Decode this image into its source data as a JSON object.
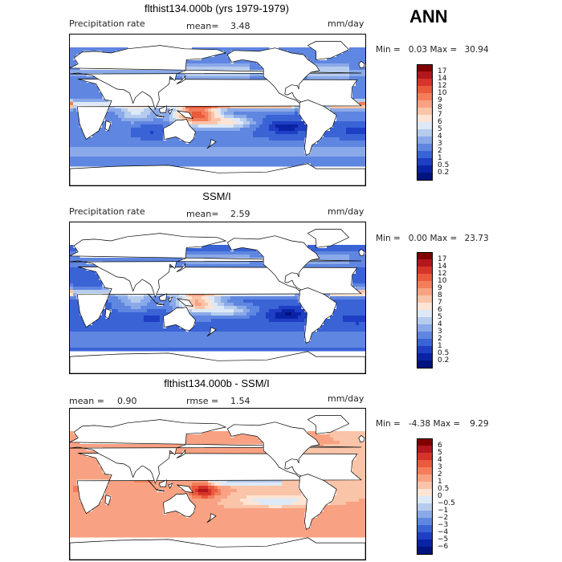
{
  "season": "ANN",
  "units": "mm/day",
  "panels": [
    {
      "title": "flthist134.000b (yrs 1979-1979)",
      "left_label": "Precipitation rate",
      "stat_label": "mean=",
      "stat_value": "3.48",
      "min_label": "Min =",
      "min_value": "0.03",
      "max_label": "Max =",
      "max_value": "30.94",
      "kind": "abs"
    },
    {
      "title": "SSM/I",
      "left_label": "Precipitation rate",
      "stat_label": "mean=",
      "stat_value": "2.59",
      "min_label": "Min =",
      "min_value": "0.00",
      "max_label": "Max =",
      "max_value": "23.73",
      "kind": "abs"
    },
    {
      "title": "flthist134.000b - SSM/I",
      "left_label": "mean =",
      "left_value": "0.90",
      "stat_label": "rmse =",
      "stat_value": "1.54",
      "min_label": "Min =",
      "min_value": "-4.38",
      "max_label": "Max =",
      "max_value": "9.29",
      "kind": "diff"
    }
  ],
  "chart_data": [
    {
      "type": "heatmap",
      "title": "flthist134.000b (yrs 1979-1979)",
      "variable": "Precipitation rate",
      "units": "mm/day",
      "mean": 3.48,
      "min": 0.03,
      "max": 30.94,
      "contour_levels": [
        0.2,
        0.5,
        1,
        2,
        3,
        4,
        5,
        6,
        7,
        8,
        9,
        10,
        12,
        14,
        17
      ],
      "colorbar_labels": [
        "17",
        "14",
        "12",
        "10",
        "9",
        "8",
        "7",
        "6",
        "5",
        "4",
        "3",
        "2",
        "1",
        "0.5",
        "0.2"
      ],
      "colors": [
        "#800000",
        "#b3171d",
        "#d6332a",
        "#ea5a3c",
        "#f47d5a",
        "#f8a283",
        "#fac4a8",
        "#fde4d4",
        "#dde9f6",
        "#b6ccee",
        "#8aa9e8",
        "#5f86e0",
        "#3a63d6",
        "#1e3ec4",
        "#0a23a6",
        "#00137e"
      ]
    },
    {
      "type": "heatmap",
      "title": "SSM/I",
      "variable": "Precipitation rate",
      "units": "mm/day",
      "mean": 2.59,
      "min": 0.0,
      "max": 23.73,
      "contour_levels": [
        0.2,
        0.5,
        1,
        2,
        3,
        4,
        5,
        6,
        7,
        8,
        9,
        10,
        12,
        14,
        17
      ],
      "colorbar_labels": [
        "17",
        "14",
        "12",
        "10",
        "9",
        "8",
        "7",
        "6",
        "5",
        "4",
        "3",
        "2",
        "1",
        "0.5",
        "0.2"
      ],
      "colors": [
        "#800000",
        "#b3171d",
        "#d6332a",
        "#ea5a3c",
        "#f47d5a",
        "#f8a283",
        "#fac4a8",
        "#fde4d4",
        "#dde9f6",
        "#b6ccee",
        "#8aa9e8",
        "#5f86e0",
        "#3a63d6",
        "#1e3ec4",
        "#0a23a6",
        "#00137e"
      ]
    },
    {
      "type": "heatmap",
      "title": "flthist134.000b - SSM/I",
      "units": "mm/day",
      "mean": 0.9,
      "rmse": 1.54,
      "min": -4.38,
      "max": 9.29,
      "contour_levels": [
        -6,
        -5,
        -4,
        -3,
        -2,
        -1,
        -0.5,
        0,
        0.5,
        1,
        2,
        3,
        4,
        5,
        6
      ],
      "colorbar_labels": [
        "6",
        "5",
        "4",
        "3",
        "2",
        "1",
        "0.5",
        "0",
        "−0.5",
        "−1",
        "−2",
        "−3",
        "−4",
        "−5",
        "−6"
      ],
      "colors": [
        "#800000",
        "#b3171d",
        "#d6332a",
        "#ea5a3c",
        "#f47d5a",
        "#f8a283",
        "#fac4a8",
        "#fde4d4",
        "#dde9f6",
        "#b6ccee",
        "#8aa9e8",
        "#5f86e0",
        "#3a63d6",
        "#1e3ec4",
        "#0a23a6",
        "#00137e"
      ]
    }
  ]
}
